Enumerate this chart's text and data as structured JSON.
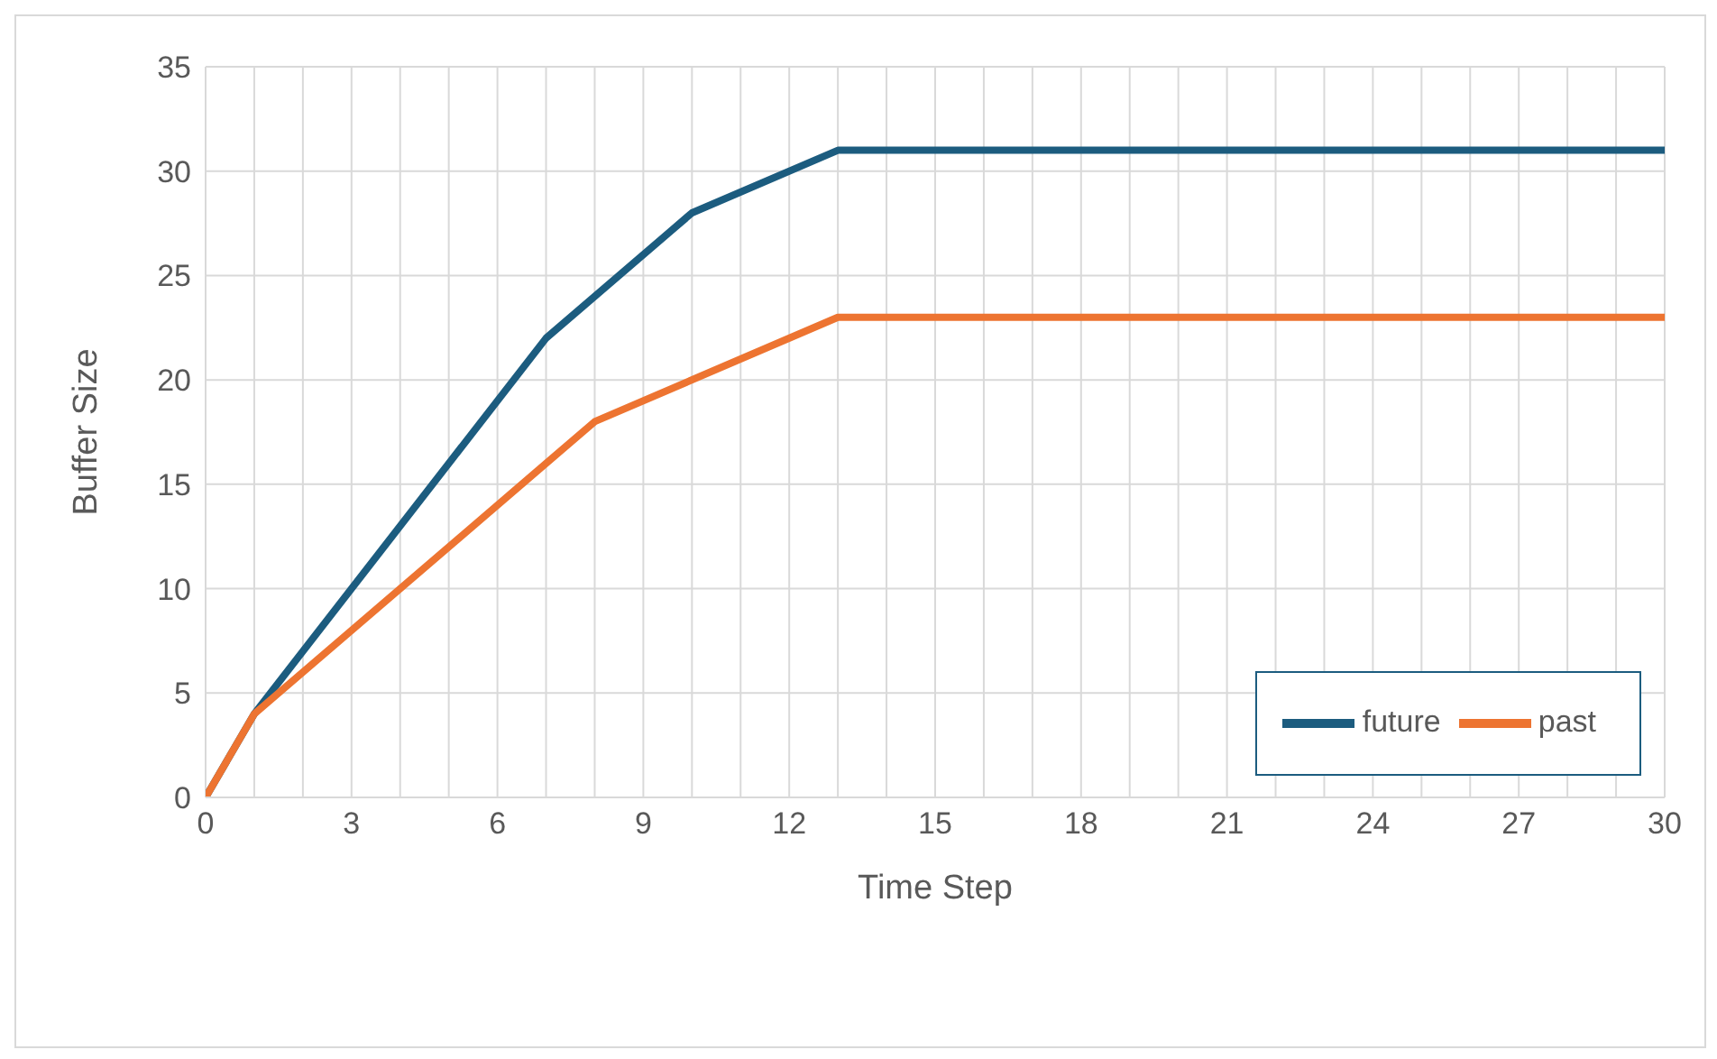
{
  "chart_data": {
    "type": "line",
    "xlabel": "Time Step",
    "ylabel": "Buffer Size",
    "series": [
      {
        "name": "future",
        "color": "#1c5c7f",
        "x": [
          0,
          1,
          7,
          10,
          13,
          30
        ],
        "values": [
          0,
          4,
          22,
          28,
          31,
          31
        ]
      },
      {
        "name": "past",
        "color": "#ed7431",
        "x": [
          0,
          1,
          8,
          13,
          30
        ],
        "values": [
          0,
          4,
          18,
          23,
          23
        ]
      }
    ],
    "xlim": [
      0,
      30
    ],
    "xticks": [
      0,
      {
        "value": 1,
        "label": null
      },
      {
        "value": 2,
        "label": null
      },
      3,
      {
        "value": 4,
        "label": null
      },
      {
        "value": 5,
        "label": null
      },
      6,
      {
        "value": 7,
        "label": null
      },
      {
        "value": 8,
        "label": null
      },
      9,
      {
        "value": 10,
        "label": null
      },
      {
        "value": 11,
        "label": null
      },
      12,
      {
        "value": 13,
        "label": null
      },
      {
        "value": 14,
        "label": null
      },
      15,
      {
        "value": 16,
        "label": null
      },
      {
        "value": 17,
        "label": null
      },
      18,
      {
        "value": 19,
        "label": null
      },
      {
        "value": 20,
        "label": null
      },
      21,
      {
        "value": 22,
        "label": null
      },
      {
        "value": 23,
        "label": null
      },
      24,
      {
        "value": 25,
        "label": null
      },
      {
        "value": 26,
        "label": null
      },
      27,
      {
        "value": 28,
        "label": null
      },
      {
        "value": 29,
        "label": null
      },
      30
    ],
    "ylim": [
      0,
      35
    ],
    "yticks": [
      0,
      5,
      10,
      15,
      20,
      25,
      30,
      35
    ],
    "grid": true,
    "legend": "bottom right",
    "marker": "none",
    "line_style": "solid"
  }
}
